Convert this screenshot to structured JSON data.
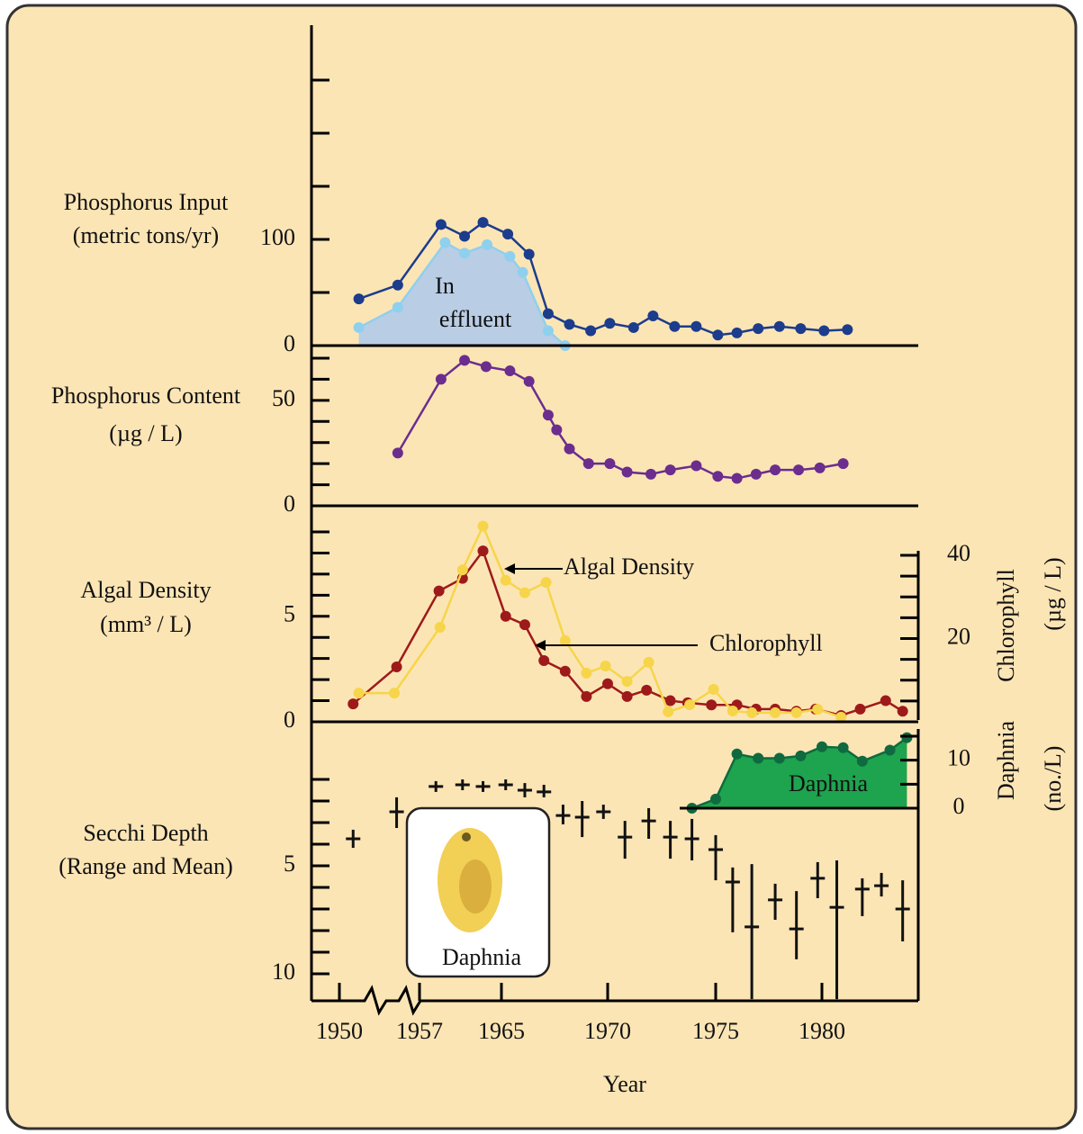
{
  "chart_data": [
    {
      "type": "line",
      "ylabel": [
        "Phosphorus Input",
        "(metric tons/yr)"
      ],
      "ylim": [
        0,
        250
      ],
      "yticks": [
        0,
        100
      ],
      "minor_yticks": [
        50,
        150,
        200,
        250
      ],
      "series": [
        {
          "color": "#1c3c8c",
          "x": [
            1951.7,
            1955.1,
            1959.1,
            1961.4,
            1963.2,
            1965.3,
            1966.3,
            1967.2,
            1968.2,
            1969.2,
            1970.1,
            1971.2,
            1972.1,
            1973.1,
            1974.1,
            1975.1,
            1976,
            1977,
            1978,
            1979,
            1980.1,
            1981.2
          ],
          "values": [
            44,
            57,
            114,
            103,
            116,
            105,
            86,
            30,
            20,
            14,
            21,
            17,
            28,
            18,
            18,
            10,
            12,
            16,
            18,
            16,
            14,
            15
          ]
        },
        {
          "label": [
            "In",
            "effluent"
          ],
          "color": "#8fd0ee",
          "fill": "#b9cde5",
          "area": true,
          "x": [
            1951.7,
            1955.1,
            1959.5,
            1961.4,
            1963.6,
            1965.4,
            1966,
            1967.2,
            1968
          ],
          "values": [
            17,
            36,
            97,
            87,
            95,
            84,
            69,
            14,
            0
          ]
        }
      ]
    },
    {
      "type": "line",
      "ylabel": [
        "Phosphorus Content",
        "(µg / L)"
      ],
      "ylim": [
        0,
        70
      ],
      "yticks": [
        0,
        50
      ],
      "minor_yticks": [
        10,
        20,
        30,
        40,
        60,
        70
      ],
      "series": [
        {
          "color": "#6b2d8e",
          "x": [
            1955.1,
            1959.1,
            1961.4,
            1963.5,
            1965.4,
            1966.3,
            1967.2,
            1967.6,
            1968.2,
            1969.1,
            1970.1,
            1970.9,
            1972,
            1972.9,
            1974.1,
            1975.1,
            1976,
            1976.9,
            1977.8,
            1978.9,
            1979.9,
            1981
          ],
          "values": [
            25,
            60,
            69,
            66,
            64,
            59,
            43,
            36,
            27,
            20,
            20,
            16,
            15,
            17,
            19,
            14,
            13,
            15,
            17,
            17,
            18,
            20
          ]
        }
      ]
    },
    {
      "type": "line",
      "ylabel": [
        "Algal Density",
        "(mm³ / L)"
      ],
      "ylim": [
        0,
        9
      ],
      "yticks": [
        0,
        5
      ],
      "minor_yticks": [
        1,
        2,
        3,
        4,
        6,
        7,
        8,
        9
      ],
      "y2label": [
        "Chlorophyll",
        "(µg / L)"
      ],
      "y2lim": [
        0,
        40
      ],
      "y2ticks": [
        20,
        40
      ],
      "minor_y2ticks": [
        5,
        10,
        15,
        25,
        30,
        35
      ],
      "series": [
        {
          "name": "Algal Density",
          "color": "#9e1a1a",
          "x": [
            1951.2,
            1955,
            1958.9,
            1961.2,
            1963.2,
            1965.2,
            1966.1,
            1967,
            1968,
            1969,
            1970,
            1970.9,
            1971.8,
            1972.9,
            1973.7,
            1974.8,
            1976,
            1976.9,
            1977.8,
            1978.8,
            1979.7,
            1980.9,
            1981.8,
            1983,
            1983.8
          ],
          "values": [
            0.85,
            2.6,
            6.2,
            6.8,
            8.1,
            5,
            4.6,
            2.9,
            2.4,
            1.2,
            1.8,
            1.2,
            1.5,
            1,
            0.9,
            0.8,
            0.8,
            0.6,
            0.6,
            0.5,
            0.6,
            0.3,
            0.6,
            1,
            0.5
          ]
        },
        {
          "name": "Chlorophyll",
          "color": "#f6d54a",
          "axis": "y2",
          "x": [
            1951.7,
            1954.8,
            1959,
            1961.2,
            1963.2,
            1965.2,
            1966.1,
            1967.1,
            1968,
            1969,
            1969.9,
            1970.9,
            1971.9,
            1972.8,
            1973.8,
            1974.9,
            1975.8,
            1976.7,
            1977.8,
            1978.8,
            1979.8,
            1980.9
          ],
          "values": [
            6.9,
            6.9,
            22.7,
            36.5,
            47,
            34,
            31,
            33.5,
            19.5,
            11.7,
            13.4,
            9.7,
            14.3,
            2.4,
            4.1,
            7.8,
            2.6,
            2.2,
            2.2,
            2.2,
            3,
            1.1
          ]
        }
      ]
    },
    {
      "type": "range",
      "ylabel": [
        "Secchi Depth",
        "(Range and Mean)"
      ],
      "ylim": [
        0,
        11.25
      ],
      "y_inverted": true,
      "yticks": [
        5,
        10
      ],
      "minor_yticks": [
        1,
        2,
        3,
        4,
        6,
        7,
        8,
        9
      ],
      "y2label": [
        "Daphnia",
        "(no./L)"
      ],
      "y2lim": [
        0,
        15
      ],
      "y2ticks": [
        0,
        10
      ],
      "minor_y2ticks": [
        5,
        15
      ],
      "xlabel": "Year",
      "xticks": [
        1950,
        1957,
        1965,
        1970,
        1975,
        1980
      ],
      "image_label": "Daphnia",
      "series": [
        {
          "type": "range",
          "color": "#111111",
          "x": [
            1951.2,
            1955,
            1958.6,
            1961.2,
            1963.2,
            1965.2,
            1966.1,
            1967,
            1967.9,
            1968.8,
            1969.8,
            1970.8,
            1971.9,
            1972.9,
            1973.9,
            1975,
            1975.8,
            1976.7,
            1977.8,
            1978.8,
            1979.8,
            1980.7,
            1981.9,
            1982.8,
            1983.8
          ],
          "values": [
            3.75,
            2.5,
            1.33,
            1.25,
            1.33,
            1.25,
            1.5,
            1.58,
            2.67,
            2.75,
            2.5,
            3.67,
            2.92,
            3.67,
            3.75,
            4.25,
            5.75,
            7.83,
            6.58,
            7.92,
            5.58,
            6.92,
            6.08,
            5.92,
            7
          ],
          "lows": [
            3.33,
            1.83,
            1.08,
            1,
            1.08,
            1,
            1.17,
            1.25,
            2.17,
            2,
            2.17,
            2.92,
            2.33,
            2.92,
            2.83,
            3.58,
            5.08,
            4.92,
            5.83,
            6.17,
            4.83,
            4.75,
            5.58,
            5.33,
            5.67
          ],
          "highs": [
            4.17,
            3.25,
            1.58,
            1.5,
            1.58,
            1.5,
            1.83,
            1.83,
            3.08,
            3.67,
            2.83,
            4.67,
            3.75,
            4.67,
            4.75,
            5.67,
            8.08,
            11.17,
            7.5,
            9.33,
            6.5,
            11.17,
            7.33,
            6.42,
            8.5
          ]
        },
        {
          "type": "area",
          "name": "Daphnia",
          "axis": "y2",
          "color": "#0f6a3f",
          "fill": "#1ea34e",
          "x": [
            1973.9,
            1975,
            1976,
            1977,
            1978,
            1979,
            1980,
            1981,
            1981.9,
            1983.2,
            1984
          ],
          "values": [
            0,
            1.9,
            11.3,
            10.4,
            10.4,
            10.9,
            12.8,
            12.6,
            9.8,
            12.1,
            14.7
          ]
        }
      ]
    }
  ]
}
